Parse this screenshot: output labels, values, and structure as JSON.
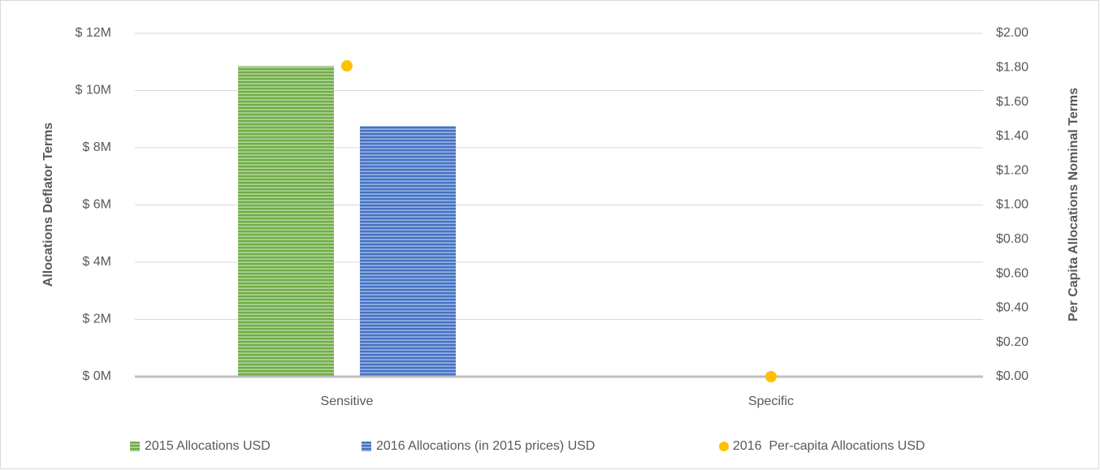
{
  "chart_data": {
    "type": "bar",
    "categories": [
      "Sensitive",
      "Specific"
    ],
    "series": [
      {
        "name": "2015 Allocations USD",
        "color": "#70ad47",
        "values": [
          10850000,
          0
        ]
      },
      {
        "name": "2016 Allocations (in 2015 prices) USD",
        "color": "#4472c4",
        "values": [
          8750000,
          0
        ]
      },
      {
        "name": "2016  Per-capita Allocations USD",
        "color": "#ffc000",
        "values": [
          1.81,
          0
        ],
        "axis": "y2",
        "type": "scatter"
      }
    ],
    "ylabel": "Allocations Deflator Terms",
    "y2label": "Per Capita Allocations Nominal Terms",
    "ylim": [
      0,
      12000000
    ],
    "yticks": [
      {
        "value": 0,
        "label": "$ 0M"
      },
      {
        "value": 2000000,
        "label": "$ 2M"
      },
      {
        "value": 4000000,
        "label": "$ 4M"
      },
      {
        "value": 6000000,
        "label": "$ 6M"
      },
      {
        "value": 8000000,
        "label": "$ 8M"
      },
      {
        "value": 10000000,
        "label": "$ 10M"
      },
      {
        "value": 12000000,
        "label": "$ 12M"
      }
    ],
    "y2lim": [
      0,
      2
    ],
    "y2ticks": [
      {
        "value": 0,
        "label": "$0.00"
      },
      {
        "value": 0.2,
        "label": "$0.20"
      },
      {
        "value": 0.4,
        "label": "$0.40"
      },
      {
        "value": 0.6,
        "label": "$0.60"
      },
      {
        "value": 0.8,
        "label": "$0.80"
      },
      {
        "value": 1,
        "label": "$1.00"
      },
      {
        "value": 1.2,
        "label": "$1.20"
      },
      {
        "value": 1.4,
        "label": "$1.40"
      },
      {
        "value": 1.6,
        "label": "$1.60"
      },
      {
        "value": 1.8,
        "label": "$1.80"
      },
      {
        "value": 2,
        "label": "$2.00"
      }
    ],
    "grid": true,
    "legend": "bottom"
  }
}
